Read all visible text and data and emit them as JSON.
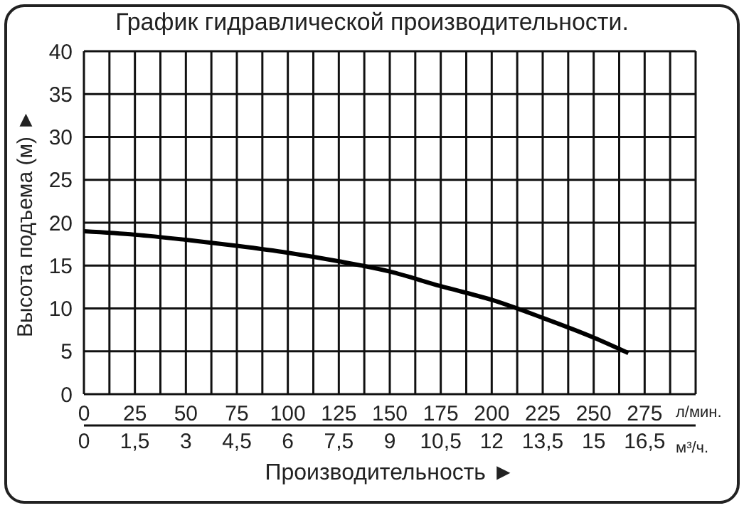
{
  "chart_data": {
    "type": "line",
    "title": "График гидравлической производительности.",
    "xlabel": "Производительность ►",
    "ylabel": "Высота подъема (м) ►",
    "annotations": [
      "л/мин.",
      "м³/ч."
    ],
    "x": [
      0,
      25,
      50,
      75,
      100,
      125,
      150,
      175,
      200,
      225,
      250,
      267
    ],
    "series": [
      {
        "color": "#000000",
        "values": [
          19,
          18.6,
          18,
          17.3,
          16.5,
          15.5,
          14.3,
          12.6,
          11,
          8.9,
          6.6,
          4.8
        ]
      }
    ],
    "xlim": [
      0,
      300
    ],
    "xticks": [
      0,
      {
        "value": 12.5,
        "label": null
      },
      25,
      {
        "value": 37.5,
        "label": null
      },
      50,
      {
        "value": 62.5,
        "label": null
      },
      75,
      {
        "value": 87.5,
        "label": null
      },
      100,
      {
        "value": 112.5,
        "label": null
      },
      125,
      {
        "value": 137.5,
        "label": null
      },
      150,
      {
        "value": 162.5,
        "label": null
      },
      175,
      {
        "value": 187.5,
        "label": null
      },
      200,
      {
        "value": 212.5,
        "label": null
      },
      225,
      {
        "value": 237.5,
        "label": null
      },
      250,
      {
        "value": 262.5,
        "label": null
      },
      275,
      {
        "value": 287.5,
        "label": null
      },
      {
        "value": 300,
        "label": null
      }
    ],
    "x2lim": [
      0,
      18
    ],
    "x2ticks": [
      0,
      {
        "value": 1.5,
        "label": "1,5"
      },
      3,
      {
        "value": 4.5,
        "label": "4,5"
      },
      6,
      {
        "value": 7.5,
        "label": "7,5"
      },
      9,
      {
        "value": 10.5,
        "label": "10,5"
      },
      12,
      {
        "value": 13.5,
        "label": "13,5"
      },
      15,
      {
        "value": 16.5,
        "label": "16,5"
      }
    ],
    "ylim": [
      0,
      40
    ],
    "yticks": [
      0,
      5,
      10,
      15,
      20,
      25,
      30,
      35,
      40
    ],
    "grid": true,
    "marker": "none",
    "line_style": "solid"
  }
}
